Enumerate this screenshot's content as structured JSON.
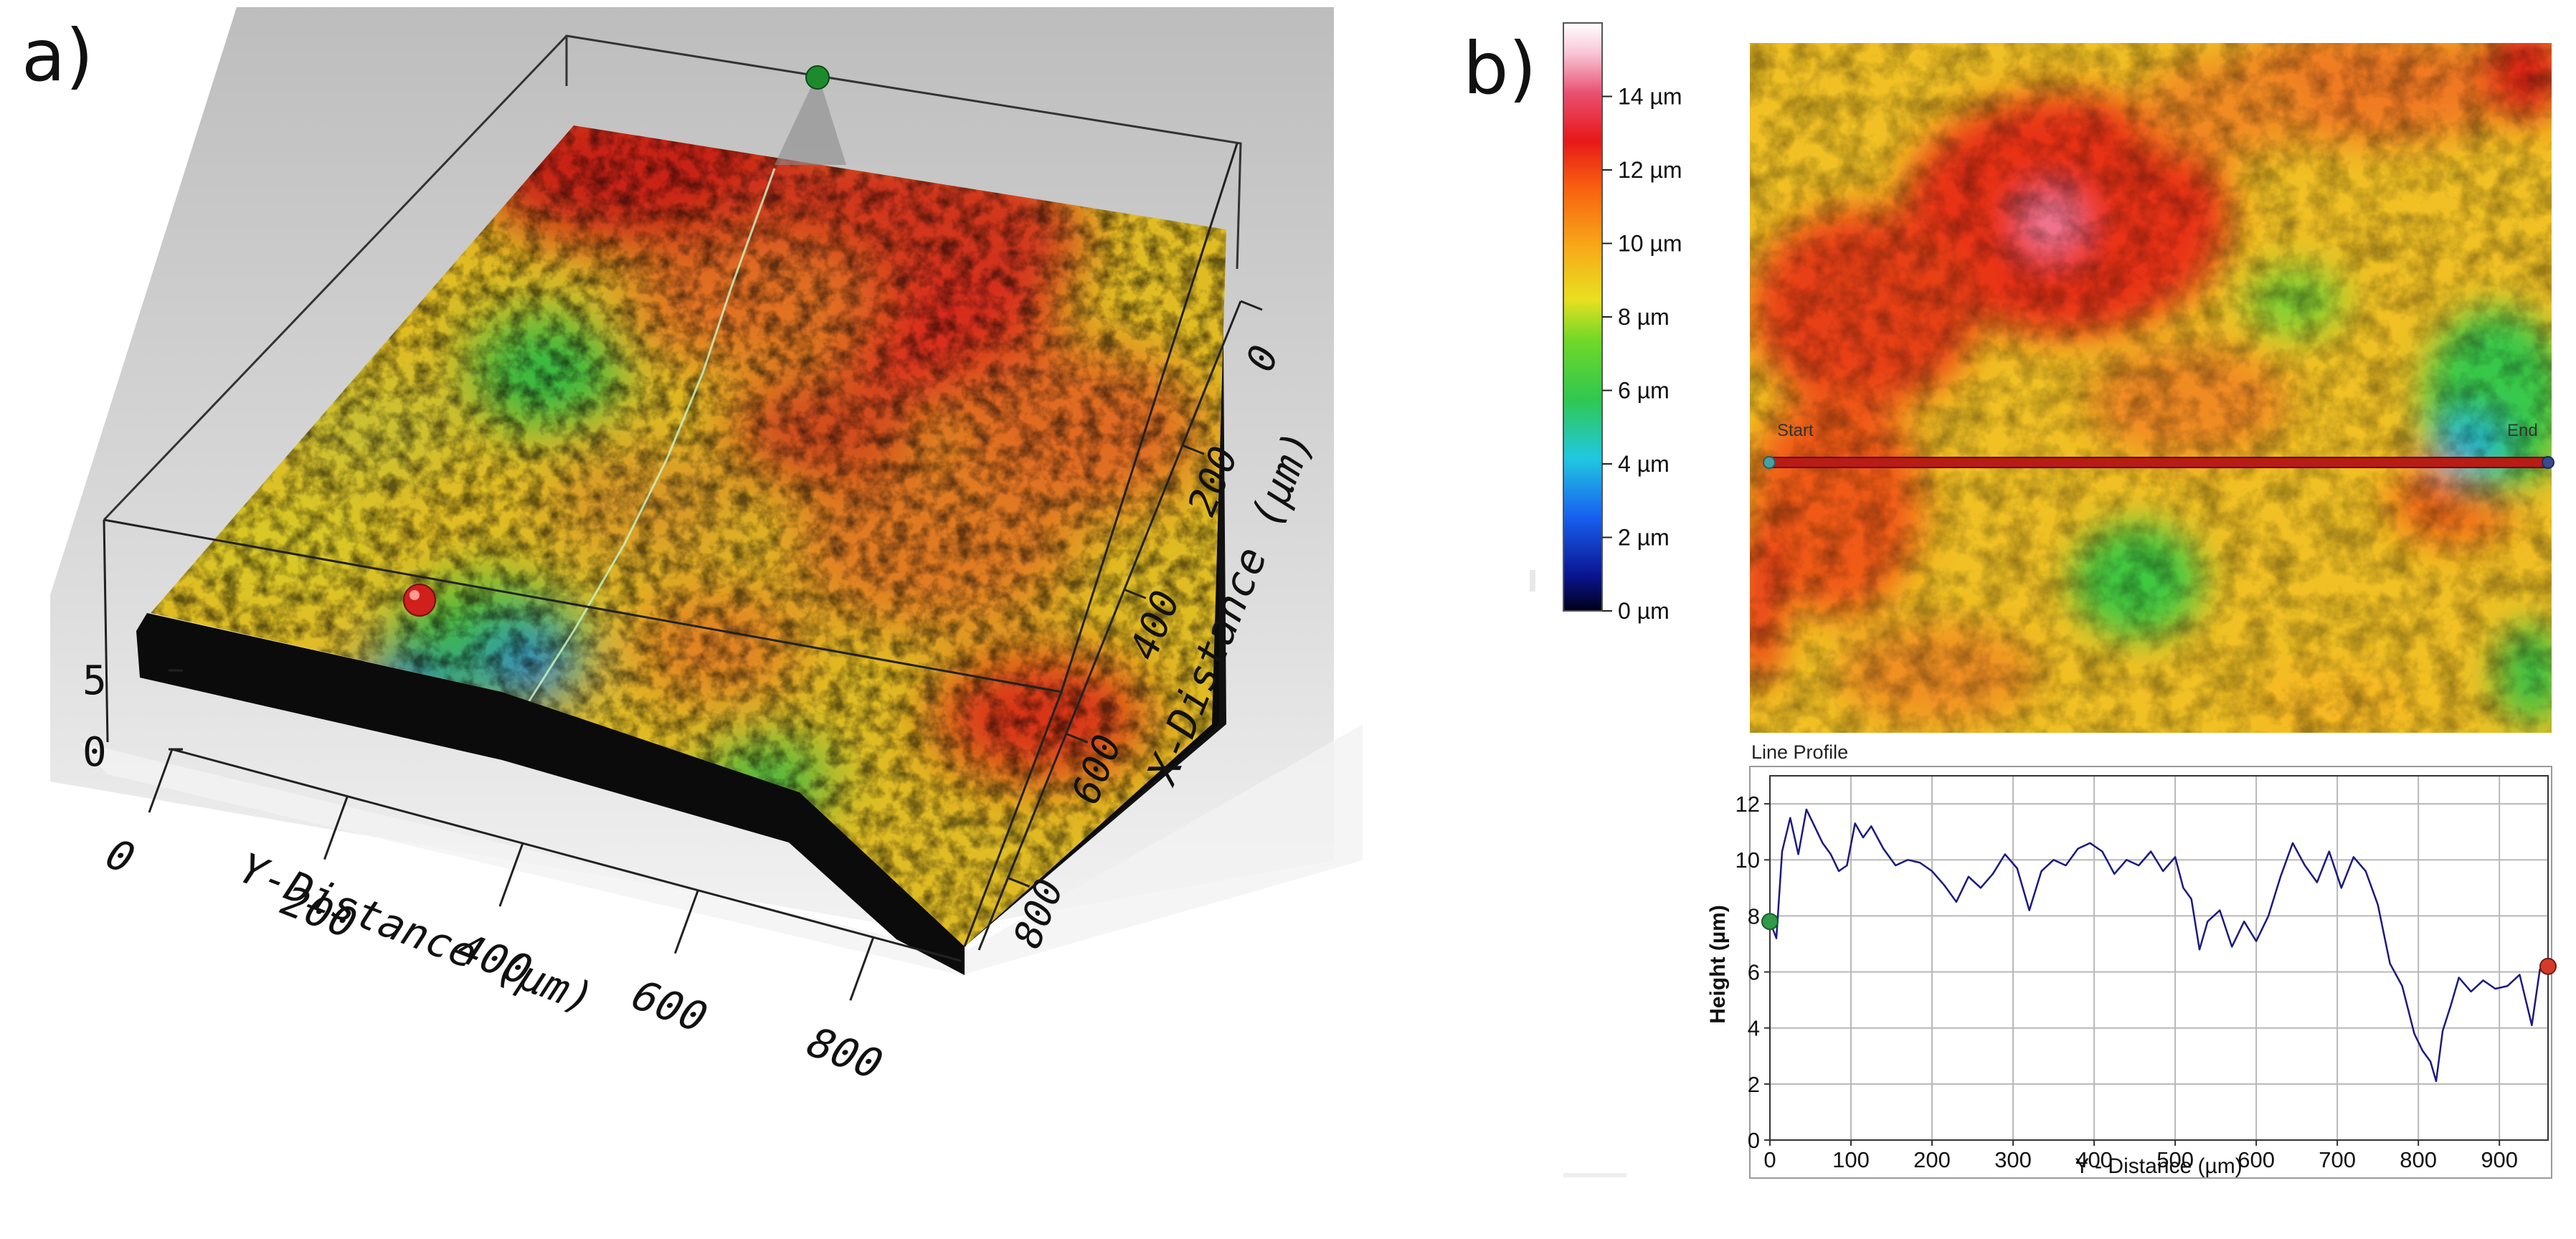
{
  "panels": {
    "a": {
      "label": "a)"
    },
    "b": {
      "label": "b)"
    }
  },
  "colors": {
    "surface_low": "#1030c0",
    "surface_mid": "#32c832",
    "surface_yellow": "#f0e020",
    "surface_orange": "#f08a18",
    "surface_high": "#d81a14",
    "profile_line": "#1a1a80",
    "start_marker": "#2e9a4a",
    "end_marker": "#d43a2a"
  },
  "chart_data": [
    {
      "type": "surface3d",
      "panel": "a",
      "x_axis": {
        "label": "X-Distance (µm)",
        "ticks": [
          "0",
          "200",
          "400",
          "600",
          "800"
        ],
        "range": [
          0,
          900
        ]
      },
      "y_axis": {
        "label": "Y-Distance (µm)",
        "ticks": [
          "0",
          "200",
          "400",
          "600",
          "800"
        ],
        "range": [
          0,
          900
        ]
      },
      "z_axis": {
        "ticks": [
          "0",
          "5"
        ]
      }
    },
    {
      "type": "heatmap",
      "panel": "b",
      "colorbar": {
        "ticks": [
          "14 µm",
          "12 µm",
          "10 µm",
          "8 µm",
          "6 µm",
          "4 µm",
          "2 µm",
          "0 µm"
        ],
        "values": [
          14,
          12,
          10,
          8,
          6,
          4,
          2,
          0
        ],
        "range": [
          0,
          16
        ]
      },
      "profile_line": {
        "start_label": "Start",
        "end_label": "End"
      }
    },
    {
      "type": "line",
      "panel": "b",
      "title": "Line Profile",
      "xlabel": "Y - Distance (µm)",
      "ylabel": "Height (µm)",
      "xlim": [
        0,
        960
      ],
      "ylim": [
        0,
        13
      ],
      "x_ticks": [
        0,
        100,
        200,
        300,
        400,
        500,
        600,
        700,
        800,
        900
      ],
      "y_ticks": [
        0,
        2,
        4,
        6,
        8,
        10,
        12
      ],
      "x": [
        0,
        8,
        15,
        25,
        35,
        45,
        55,
        65,
        75,
        85,
        95,
        105,
        115,
        125,
        140,
        155,
        170,
        185,
        200,
        215,
        230,
        245,
        260,
        275,
        290,
        305,
        320,
        335,
        350,
        365,
        380,
        395,
        410,
        425,
        440,
        455,
        470,
        485,
        500,
        510,
        520,
        530,
        540,
        555,
        570,
        585,
        600,
        615,
        630,
        645,
        660,
        675,
        690,
        705,
        720,
        735,
        750,
        765,
        780,
        795,
        805,
        815,
        822,
        830,
        840,
        850,
        865,
        880,
        895,
        910,
        925,
        940,
        950,
        960
      ],
      "y": [
        7.8,
        7.2,
        10.3,
        11.5,
        10.2,
        11.8,
        11.2,
        10.6,
        10.2,
        9.6,
        9.8,
        11.3,
        10.8,
        11.2,
        10.4,
        9.8,
        10.0,
        9.9,
        9.6,
        9.1,
        8.5,
        9.4,
        9.0,
        9.5,
        10.2,
        9.7,
        8.2,
        9.6,
        10.0,
        9.8,
        10.4,
        10.6,
        10.3,
        9.5,
        10.0,
        9.8,
        10.3,
        9.6,
        10.1,
        9.0,
        8.6,
        6.8,
        7.8,
        8.2,
        6.9,
        7.8,
        7.1,
        8.0,
        9.4,
        10.6,
        9.8,
        9.2,
        10.3,
        9.0,
        10.1,
        9.6,
        8.4,
        6.3,
        5.5,
        3.8,
        3.2,
        2.8,
        2.1,
        3.9,
        4.8,
        5.8,
        5.3,
        5.7,
        5.4,
        5.5,
        5.9,
        4.1,
        6.1,
        6.2
      ]
    }
  ]
}
